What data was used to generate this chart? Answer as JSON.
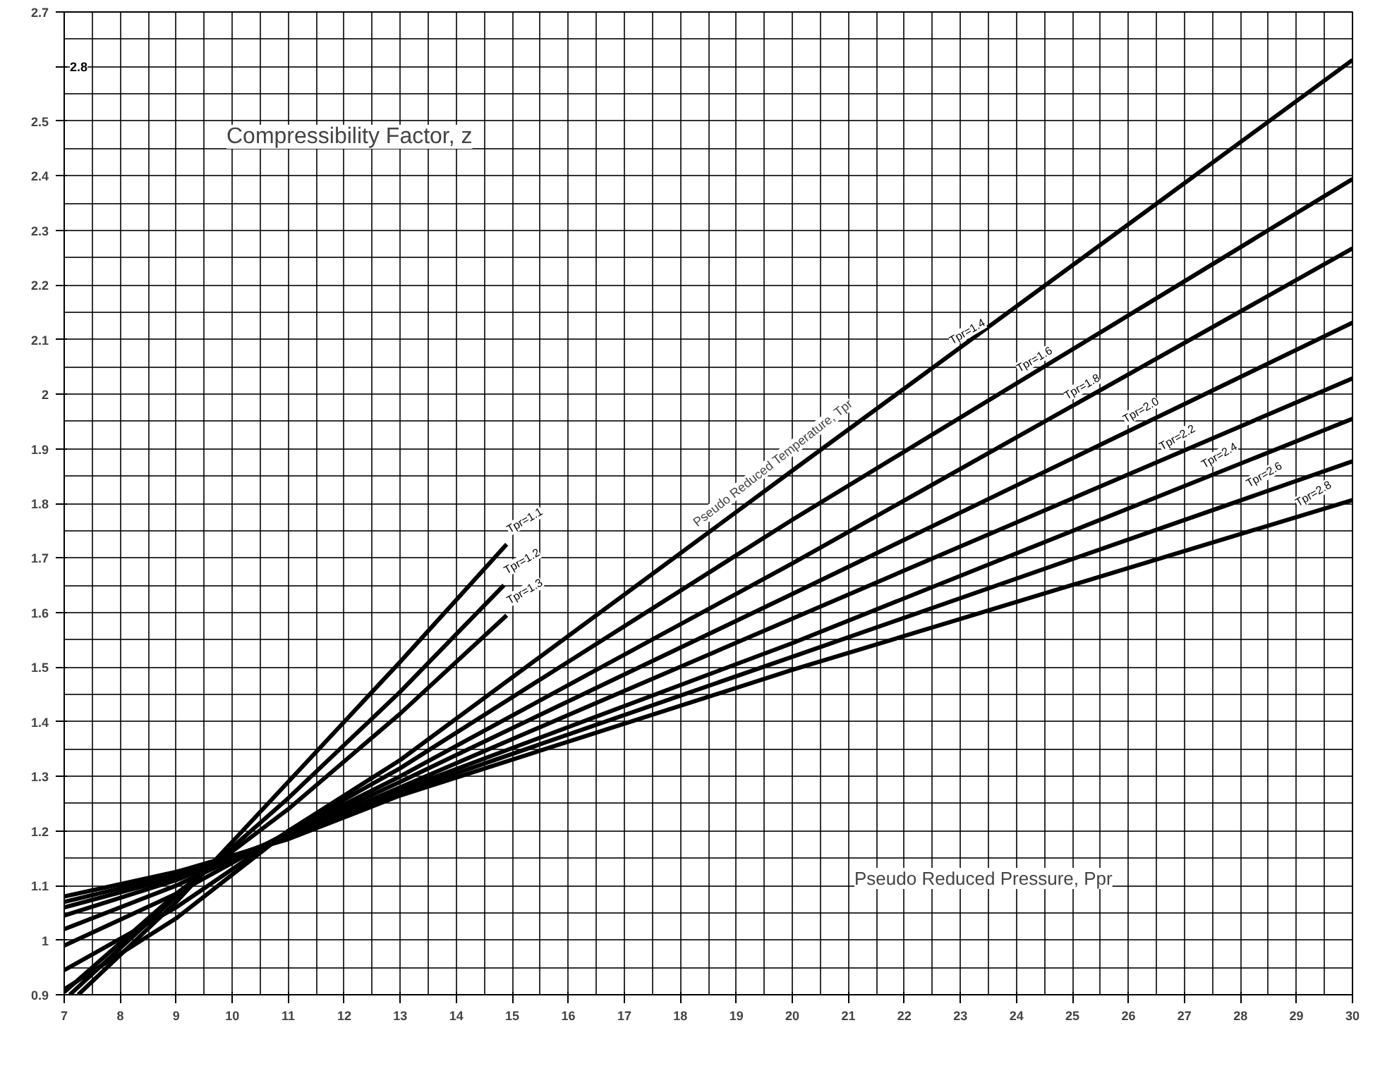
{
  "chart_data": {
    "type": "line",
    "xlabel": "Pseudo Reduced Pressure, Ppr",
    "ylabel": "Compressibility Factor, z",
    "xlim": [
      7,
      30
    ],
    "ylim": [
      0.9,
      2.7
    ],
    "xticks": [
      7,
      8,
      9,
      10,
      11,
      12,
      13,
      14,
      15,
      16,
      17,
      18,
      19,
      20,
      21,
      22,
      23,
      24,
      25,
      26,
      27,
      28,
      29,
      30
    ],
    "yticks": [
      0.9,
      1.0,
      1.1,
      1.2,
      1.3,
      1.4,
      1.5,
      1.6,
      1.7,
      1.8,
      1.9,
      2.0,
      2.1,
      2.2,
      2.3,
      2.4,
      2.5,
      {
        "value": 2.6,
        "label": null
      },
      2.7
    ],
    "grid": true,
    "marker": "none",
    "line_style": "solid",
    "series": [
      {
        "color": "#000000",
        "x": [
          7.25,
          9,
          11,
          13,
          14.9
        ],
        "values": [
          0.9,
          1.07,
          1.29,
          1.51,
          1.725
        ]
      },
      {
        "color": "#000000",
        "x": [
          7.1,
          9,
          11,
          13,
          14.85
        ],
        "values": [
          0.9,
          1.08,
          1.26,
          1.455,
          1.65
        ]
      },
      {
        "color": "#000000",
        "x": [
          7,
          9,
          11,
          13,
          14.9
        ],
        "values": [
          0.905,
          1.085,
          1.24,
          1.415,
          1.595
        ]
      },
      {
        "color": "#000000",
        "x": [
          7,
          9,
          11,
          13,
          20,
          30
        ],
        "values": [
          0.91,
          1.04,
          1.2,
          1.33,
          1.86,
          2.612
        ]
      },
      {
        "color": "#000000",
        "x": [
          7,
          9,
          11,
          13,
          20,
          30
        ],
        "values": [
          0.945,
          1.06,
          1.2,
          1.315,
          1.77,
          2.394
        ]
      },
      {
        "color": "#000000",
        "x": [
          7,
          9,
          11,
          13,
          20,
          30
        ],
        "values": [
          0.99,
          1.085,
          1.198,
          1.3,
          1.69,
          2.267
        ]
      },
      {
        "color": "#000000",
        "x": [
          7,
          9,
          11,
          13,
          20,
          30
        ],
        "values": [
          1.02,
          1.1,
          1.195,
          1.29,
          1.634,
          2.131
        ]
      },
      {
        "color": "#000000",
        "x": [
          7,
          9,
          11,
          13,
          20,
          30
        ],
        "values": [
          1.045,
          1.11,
          1.192,
          1.28,
          1.589,
          2.029
        ]
      },
      {
        "color": "#000000",
        "x": [
          7,
          9,
          11,
          13,
          20,
          30
        ],
        "values": [
          1.06,
          1.115,
          1.19,
          1.275,
          1.544,
          1.955
        ]
      },
      {
        "color": "#000000",
        "x": [
          7,
          9,
          11,
          13,
          20,
          30
        ],
        "values": [
          1.07,
          1.12,
          1.188,
          1.27,
          1.519,
          1.877
        ]
      },
      {
        "color": "#000000",
        "x": [
          7,
          9,
          11,
          13,
          20,
          30
        ],
        "values": [
          1.08,
          1.125,
          1.185,
          1.265,
          1.495,
          1.806
        ]
      }
    ],
    "annotations": [
      {
        "text": "Tpr=1.1",
        "x": 14.9,
        "y": 1.725
      },
      {
        "text": "Tpr=1.2",
        "x": 14.85,
        "y": 1.65
      },
      {
        "text": "Tpr=1.3",
        "x": 14.9,
        "y": 1.595
      },
      {
        "text": "Tpr=1.4",
        "x": 22.8,
        "y": 2.071
      },
      {
        "text": "Tpr=1.6",
        "x": 24.0,
        "y": 2.02
      },
      {
        "text": "Tpr=1.8",
        "x": 24.85,
        "y": 1.97
      },
      {
        "text": "Tpr=2.0",
        "x": 25.9,
        "y": 1.927
      },
      {
        "text": "Tpr=2.2",
        "x": 26.55,
        "y": 1.877
      },
      {
        "text": "Tpr=2.4",
        "x": 27.3,
        "y": 1.844
      },
      {
        "text": "Tpr=2.6",
        "x": 28.1,
        "y": 1.809
      },
      {
        "text": "Tpr=2.8",
        "x": 28.98,
        "y": 1.774
      },
      "Pseudo Reduced Temperature, Tpr",
      "2.8"
    ]
  }
}
